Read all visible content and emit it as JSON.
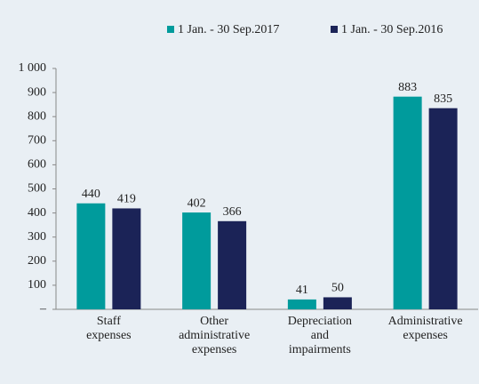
{
  "chart_data": {
    "type": "bar",
    "categories": [
      "Staff expenses",
      "Other administrative expenses",
      "Depreciation and impairments",
      "Administrative expenses"
    ],
    "series": [
      {
        "name": "1 Jan. - 30 Sep.2017",
        "color": "#009b9c",
        "values": [
          440,
          402,
          41,
          883
        ]
      },
      {
        "name": "1 Jan. - 30 Sep.2016",
        "color": "#1b2357",
        "values": [
          419,
          366,
          50,
          835
        ]
      }
    ],
    "ylim": [
      0,
      1000
    ],
    "yticks": [
      {
        "value": 0,
        "label": "–"
      },
      100,
      200,
      300,
      400,
      500,
      600,
      700,
      800,
      900,
      {
        "value": 1000,
        "label": "1 000"
      }
    ],
    "legend": "top"
  }
}
